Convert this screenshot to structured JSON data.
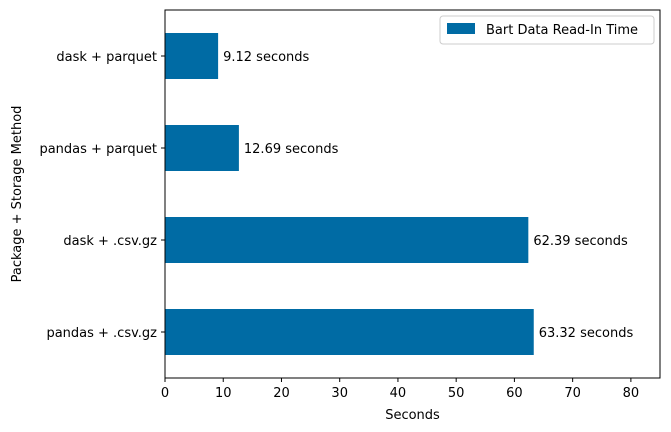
{
  "chart_data": {
    "type": "bar",
    "orientation": "horizontal",
    "categories": [
      "dask + parquet",
      "pandas + parquet",
      "dask + .csv.gz",
      "pandas + .csv.gz"
    ],
    "series": [
      {
        "name": "Bart Data Read-In Time",
        "values": [
          9.12,
          12.69,
          62.39,
          63.32
        ],
        "color": "#006BA4"
      }
    ],
    "data_labels": [
      "9.12 seconds",
      "12.69 seconds",
      "62.39 seconds",
      "63.32 seconds"
    ],
    "title": "",
    "xlabel": "Seconds",
    "ylabel": "Package + Storage Method",
    "xlim": [
      0,
      85
    ],
    "xticks": [
      0,
      10,
      20,
      30,
      40,
      50,
      60,
      70,
      80
    ],
    "grid": false,
    "legend": "top-right"
  }
}
